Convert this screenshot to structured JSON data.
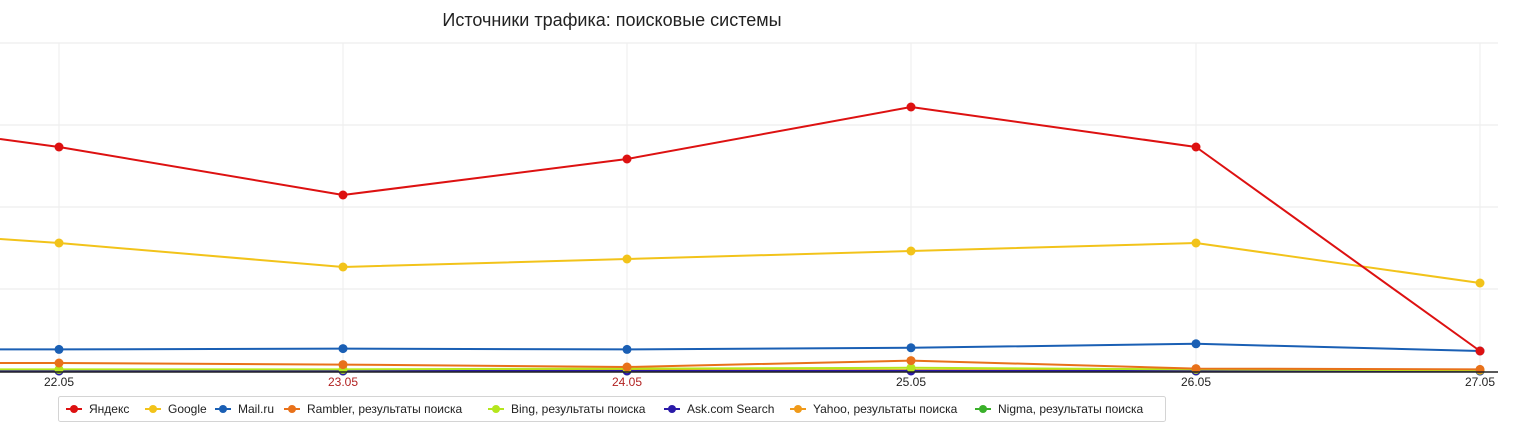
{
  "chart_data": {
    "type": "line",
    "title": "Источники трафика: поисковые системы",
    "xlabel": "",
    "ylabel": "",
    "x": [
      "22.05",
      "23.05",
      "24.05",
      "25.05",
      "26.05",
      "27.05"
    ],
    "x_label_colors": [
      "#222222",
      "#b22222",
      "#b22222",
      "#222222",
      "#222222",
      "#222222"
    ],
    "ylim": [
      0,
      4.1
    ],
    "grid": true,
    "legend": "bottom",
    "series": [
      {
        "name": "Яндекс",
        "color": "#dd1111",
        "values": [
          2.8,
          2.2,
          2.65,
          3.3,
          2.8,
          0.25
        ],
        "left_value": 2.9
      },
      {
        "name": "Google",
        "color": "#f2c31a",
        "values": [
          1.6,
          1.3,
          1.4,
          1.5,
          1.6,
          1.1
        ],
        "left_value": 1.65
      },
      {
        "name": "Mail.ru",
        "color": "#1a5fb4",
        "values": [
          0.27,
          0.28,
          0.27,
          0.29,
          0.34,
          0.25
        ],
        "left_value": 0.27
      },
      {
        "name": "Rambler, результаты поиска",
        "color": "#e8711a",
        "values": [
          0.1,
          0.08,
          0.05,
          0.13,
          0.03,
          0.02
        ],
        "left_value": 0.1
      },
      {
        "name": "Bing, результаты поиска",
        "color": "#b5e61d",
        "values": [
          0.02,
          0.02,
          0.03,
          0.04,
          0.02,
          0.01
        ],
        "left_value": 0.02
      },
      {
        "name": "Ask.com Search",
        "color": "#2a1aa8",
        "values": [
          0.0,
          0.0,
          0.0,
          0.0,
          0.0,
          0.0
        ],
        "left_value": 0.0
      },
      {
        "name": "Yahoo, результаты поиска",
        "color": "#f09a1a",
        "values": [
          0.01,
          0.01,
          0.01,
          0.01,
          0.01,
          0.01
        ],
        "left_value": 0.01
      },
      {
        "name": "Nigma, результаты поиска",
        "color": "#3ab02a",
        "values": [
          0.0,
          0.0,
          0.0,
          0.01,
          0.0,
          0.0
        ],
        "left_value": 0.0
      }
    ]
  }
}
